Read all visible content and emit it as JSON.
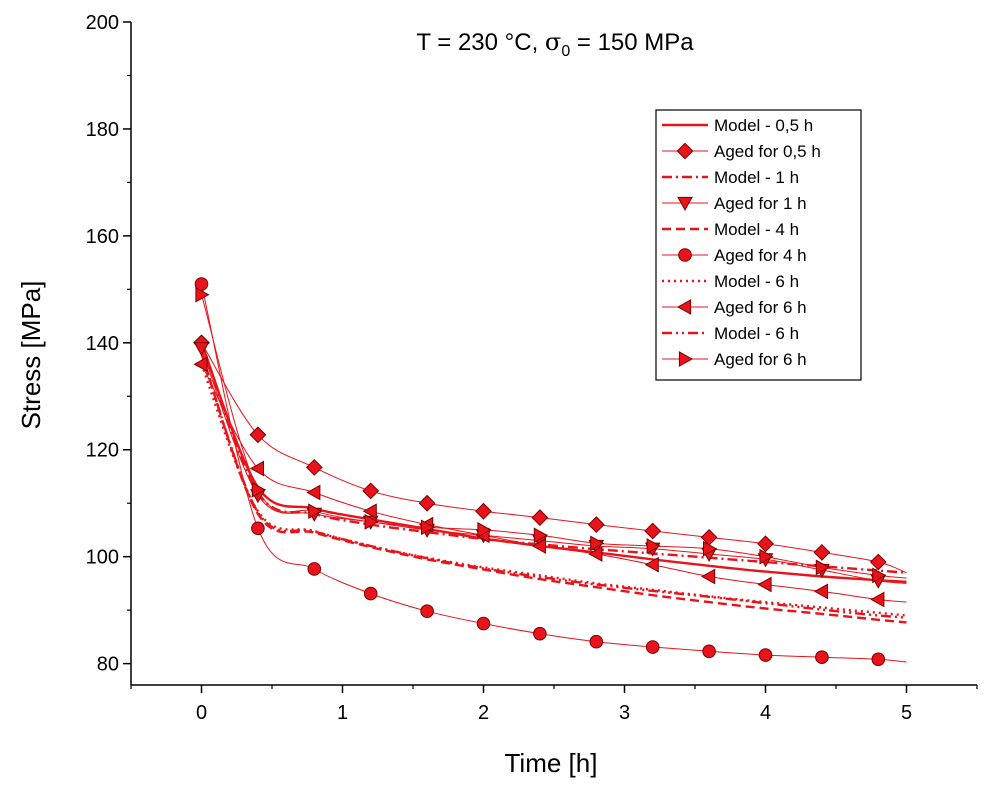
{
  "chart_data": {
    "type": "line",
    "title_main": "T = 230 °C, ",
    "title_sigma": "σ",
    "title_sub": "0",
    "title_rest": " = 150 MPa",
    "xlabel": "Time [h]",
    "ylabel": "Stress [MPa]",
    "xlim": [
      -0.5,
      5.5
    ],
    "ylim": [
      76,
      200
    ],
    "xticks": [
      0,
      1,
      2,
      3,
      4,
      5
    ],
    "yticks": [
      80,
      100,
      120,
      140,
      160,
      180,
      200
    ],
    "color": "#e8141b",
    "grid": false,
    "legend_position": "top-right",
    "series": [
      {
        "name": "Model - 0,5 h",
        "kind": "model",
        "dash": "solid",
        "x": [
          0,
          0.4,
          0.8,
          1.2,
          1.6,
          2.0,
          2.4,
          2.8,
          3.2,
          3.6,
          4.0,
          4.4,
          4.8,
          5.0
        ],
        "y": [
          140,
          113,
          109,
          107,
          105.2,
          103.4,
          102,
          100.8,
          99.5,
          98.3,
          97.2,
          96.3,
          95.6,
          95.3
        ]
      },
      {
        "name": "Aged for 0,5 h",
        "kind": "data",
        "marker": "diamond",
        "x": [
          0,
          0.4,
          0.8,
          1.2,
          1.6,
          2.0,
          2.4,
          2.8,
          3.2,
          3.6,
          4.0,
          4.4,
          4.8,
          5.0
        ],
        "y": [
          140,
          122.8,
          116.7,
          112.3,
          110,
          108.5,
          107.3,
          106,
          104.8,
          103.6,
          102.4,
          100.8,
          99,
          97
        ]
      },
      {
        "name": "Model - 1 h",
        "kind": "model",
        "dash": "dashdot",
        "x": [
          0,
          0.4,
          0.8,
          1.2,
          1.6,
          2.0,
          2.4,
          2.8,
          3.2,
          3.6,
          4.0,
          4.4,
          4.8,
          5.0
        ],
        "y": [
          140,
          112,
          108,
          106,
          104.6,
          103.3,
          102.3,
          101.4,
          100.6,
          99.8,
          99,
          98.2,
          97.4,
          97
        ]
      },
      {
        "name": "Aged for 1 h",
        "kind": "data",
        "marker": "triangle-down",
        "x": [
          0,
          0.4,
          0.8,
          1.2,
          1.6,
          2.0,
          2.4,
          2.8,
          3.2,
          3.6,
          4.0,
          4.4,
          4.8,
          5.0
        ],
        "y": [
          139,
          111.5,
          108,
          106.5,
          105,
          104,
          103,
          102,
          101.5,
          100.5,
          99.5,
          97.5,
          95.5,
          95
        ]
      },
      {
        "name": "Model - 4 h",
        "kind": "model",
        "dash": "dash",
        "x": [
          0,
          0.4,
          0.8,
          1.2,
          1.6,
          2.0,
          2.4,
          2.8,
          3.2,
          3.6,
          4.0,
          4.4,
          4.8,
          5.0
        ],
        "y": [
          138,
          108,
          104.5,
          101.8,
          99.5,
          97.6,
          95.8,
          94.3,
          92.8,
          91.5,
          90.3,
          89.3,
          88.2,
          87.7
        ]
      },
      {
        "name": "Aged for 4 h",
        "kind": "data",
        "marker": "circle",
        "x": [
          0,
          0.4,
          0.8,
          1.2,
          1.6,
          2.0,
          2.4,
          2.8,
          3.2,
          3.6,
          4.0,
          4.4,
          4.8,
          5.0
        ],
        "y": [
          151,
          105.3,
          97.7,
          93.1,
          89.8,
          87.5,
          85.6,
          84.1,
          83.1,
          82.3,
          81.6,
          81.2,
          80.8,
          80.3
        ]
      },
      {
        "name": "Model - 6 h",
        "kind": "model",
        "dash": "dot",
        "x": [
          0,
          0.4,
          0.8,
          1.2,
          1.6,
          2.0,
          2.4,
          2.8,
          3.2,
          3.6,
          4.0,
          4.4,
          4.8,
          5.0
        ],
        "y": [
          136,
          108.5,
          104.8,
          102,
          99.8,
          98,
          96.5,
          95,
          93.8,
          92.6,
          91.5,
          90.5,
          89.5,
          89
        ]
      },
      {
        "name": "Aged for 6 h",
        "kind": "data",
        "marker": "triangle-left",
        "x": [
          0,
          0.4,
          0.8,
          1.2,
          1.6,
          2.0,
          2.4,
          2.8,
          3.2,
          3.6,
          4.0,
          4.4,
          4.8,
          5.0
        ],
        "y": [
          136,
          116.5,
          112,
          108.5,
          106,
          104,
          102,
          100.5,
          98.5,
          96.3,
          94.8,
          93.5,
          92,
          91.5
        ]
      },
      {
        "name": "Model - 6 h",
        "kind": "model",
        "dash": "dashdotdot",
        "x": [
          0,
          0.4,
          0.8,
          1.2,
          1.6,
          2.0,
          2.4,
          2.8,
          3.2,
          3.6,
          4.0,
          4.4,
          4.8,
          5.0
        ],
        "y": [
          138,
          108.3,
          104.7,
          102,
          99.7,
          97.8,
          96.2,
          94.8,
          93.6,
          92.5,
          91.3,
          90.1,
          89,
          88.6
        ]
      },
      {
        "name": "Aged for 6 h",
        "kind": "data",
        "marker": "triangle-right",
        "x": [
          0,
          0.4,
          0.8,
          1.2,
          1.6,
          2.0,
          2.4,
          2.8,
          3.2,
          3.6,
          4.0,
          4.4,
          4.8,
          5.0
        ],
        "y": [
          149,
          112.5,
          108.5,
          106.5,
          105.5,
          105,
          104,
          102.5,
          102,
          101.5,
          100,
          98,
          96.5,
          96
        ]
      }
    ]
  }
}
